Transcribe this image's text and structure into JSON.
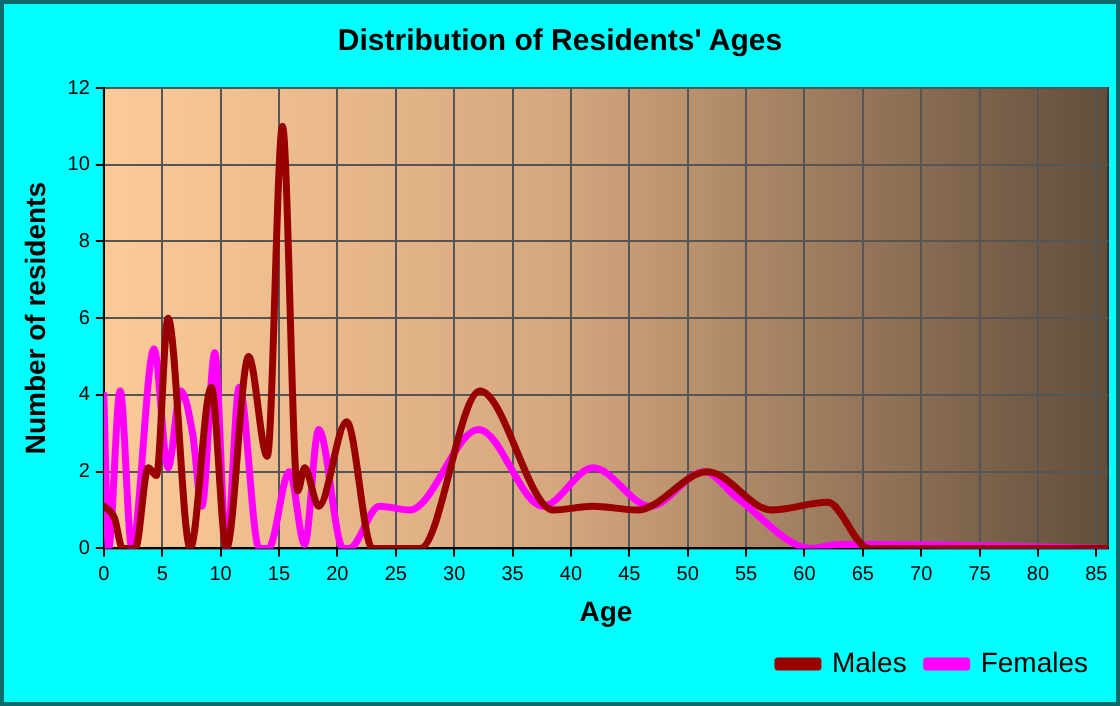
{
  "chart_data": {
    "type": "line",
    "title": "Distribution of Residents' Ages",
    "xlabel": "Age",
    "ylabel": "Number of residents",
    "xlim": [
      0,
      86
    ],
    "xticks": [
      0,
      5,
      10,
      15,
      20,
      25,
      30,
      35,
      40,
      45,
      50,
      55,
      60,
      65,
      70,
      75,
      80,
      85
    ],
    "ylim": [
      0,
      12
    ],
    "yticks": [
      0,
      2,
      4,
      6,
      8,
      10,
      12
    ],
    "grid": true,
    "legend": "bottom",
    "marker": "none",
    "line_style": "solid",
    "series": [
      {
        "name": "Males",
        "color": "#990000",
        "x": [
          0,
          0.9,
          1.6,
          2.7,
          3.8,
          4.5,
          5.5,
          7.4,
          9.2,
          10.5,
          12.4,
          14.0,
          15.3,
          16.6,
          17.2,
          18.4,
          20.8,
          23.0,
          27.1,
          32.2,
          38.5,
          41.9,
          45.7,
          51.7,
          57.2,
          62.0,
          65.5,
          86
        ],
        "values": [
          1.1,
          0.8,
          0,
          0,
          2.1,
          1.9,
          6,
          0,
          4.2,
          0,
          5,
          2.4,
          11,
          1.5,
          2.1,
          1.1,
          3.3,
          0,
          0,
          4.1,
          1,
          1.1,
          1,
          2,
          1,
          1.2,
          0,
          0
        ]
      },
      {
        "name": "Females",
        "color": "#ff00ff",
        "x": [
          0,
          0.4,
          1.4,
          2.4,
          4.3,
          5.5,
          6.6,
          7.6,
          8.4,
          9.5,
          10.5,
          11.6,
          13.3,
          14.1,
          15.9,
          17.2,
          18.4,
          20.5,
          21.0,
          23.6,
          26.2,
          32.1,
          37.6,
          41.9,
          46.8,
          51.4,
          54.3,
          60.6,
          62.9,
          65.8,
          86
        ],
        "values": [
          4,
          0,
          4.1,
          0,
          5.2,
          2.1,
          4.1,
          3,
          1.1,
          5.1,
          0,
          4.2,
          0,
          0,
          2,
          0.1,
          3.1,
          0,
          0,
          1.1,
          1,
          3.1,
          1.1,
          2.1,
          1.1,
          2,
          1.3,
          0,
          0.1,
          0.1,
          0
        ]
      }
    ]
  }
}
